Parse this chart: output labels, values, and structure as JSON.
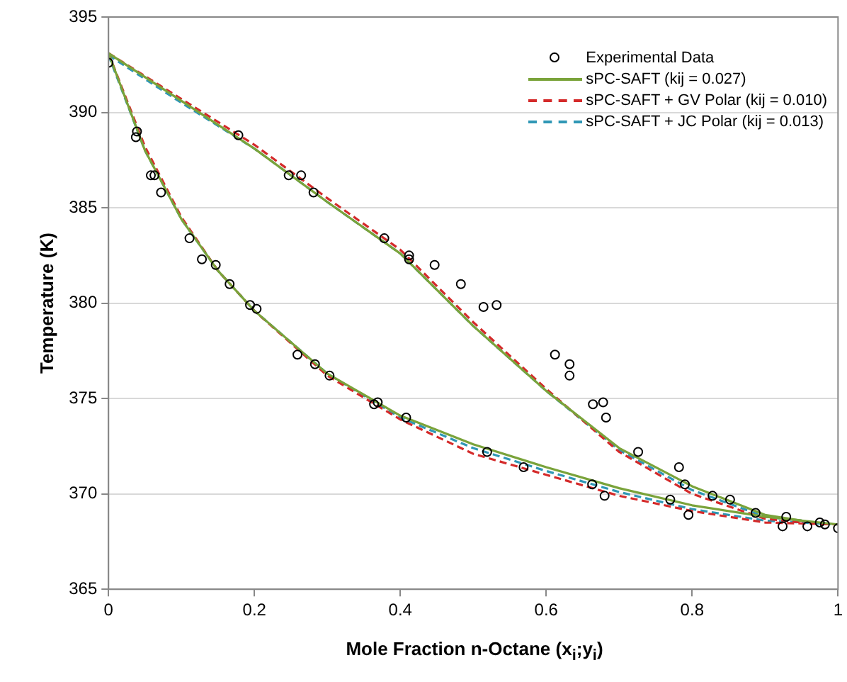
{
  "chart_data": {
    "type": "line",
    "xlabel": "Mole Fraction n-Octane (x$_{i}$;y$_{i}$)",
    "ylabel": "Temperature (K)",
    "xlim": [
      0,
      1
    ],
    "xticks": [
      0,
      0.2,
      0.4,
      0.6,
      0.8,
      1
    ],
    "ylim": [
      365,
      395
    ],
    "yticks": [
      365,
      370,
      375,
      380,
      385,
      390,
      395
    ],
    "grid": "y",
    "legend": "top right",
    "series": [
      {
        "name": "Experimental Data",
        "type": "scatter",
        "marker": "circle",
        "color": "#000000",
        "x": [
          0,
          0.0375,
          0.039,
          0.058,
          0.063,
          0.072,
          0.111,
          0.128,
          0.147,
          0.166,
          0.194,
          0.203,
          0.259,
          0.283,
          0.303,
          0.364,
          0.369,
          0.408,
          0.519,
          0.569,
          0.663,
          0.68,
          0.77,
          0.795,
          0.178,
          0.247,
          0.264,
          0.281,
          0.378,
          0.412,
          0.412,
          0.447,
          0.483,
          0.514,
          0.532,
          0.612,
          0.632,
          0.632,
          0.664,
          0.678,
          0.682,
          0.726,
          0.782,
          0.79,
          0.828,
          0.852,
          0.887,
          0.924,
          0.929,
          0.958,
          0.975,
          0.982,
          1
        ],
        "values": [
          392.6,
          388.7,
          389,
          386.7,
          386.7,
          385.8,
          383.4,
          382.3,
          382,
          381,
          379.9,
          379.7,
          377.3,
          376.8,
          376.2,
          374.7,
          374.8,
          374,
          372.2,
          371.4,
          370.5,
          369.9,
          369.7,
          368.9,
          388.8,
          386.7,
          386.7,
          385.8,
          383.4,
          382.5,
          382.3,
          382,
          381,
          379.8,
          379.9,
          377.3,
          376.8,
          376.2,
          374.7,
          374.8,
          374,
          372.2,
          371.4,
          370.5,
          369.9,
          369.7,
          369,
          368.3,
          368.8,
          368.3,
          368.5,
          368.4,
          368.2
        ]
      },
      {
        "name": "sPC-SAFT (kij = 0.027)",
        "line_style": "solid",
        "marker": "none",
        "color": "#7aa33a",
        "x": [
          0,
          0.05,
          0.1,
          0.15,
          0.2,
          0.3,
          0.4,
          0.5,
          0.6,
          0.7,
          0.8,
          0.9,
          1
        ],
        "values": [
          393.1,
          388,
          384.4,
          381.7,
          379.6,
          376.3,
          374.1,
          372.6,
          371.4,
          370.3,
          369.4,
          368.8,
          368.4
        ]
      },
      {
        "line_style": "solid",
        "marker": "none",
        "color": "#7aa33a",
        "x": [
          0,
          0.1,
          0.2,
          0.3,
          0.4,
          0.5,
          0.6,
          0.7,
          0.8,
          0.9,
          0.95
        ],
        "values": [
          393.1,
          390.6,
          388.1,
          385.3,
          382.6,
          378.8,
          375.4,
          372.4,
          370.4,
          368.9,
          368.6
        ]
      },
      {
        "name": "sPC-SAFT + GV Polar (kij = 0.010)",
        "line_style": "dashed",
        "marker": "none",
        "color": "#d42a2a",
        "x": [
          0,
          0.05,
          0.1,
          0.15,
          0.2,
          0.3,
          0.4,
          0.5,
          0.6,
          0.7,
          0.8,
          0.9,
          1
        ],
        "values": [
          393.1,
          388.2,
          384.5,
          381.7,
          379.6,
          376.2,
          373.9,
          372.1,
          371,
          369.9,
          369.1,
          368.5,
          368.4
        ]
      },
      {
        "line_style": "dashed",
        "marker": "none",
        "color": "#d42a2a",
        "x": [
          0,
          0.1,
          0.2,
          0.3,
          0.4,
          0.5,
          0.6,
          0.7,
          0.8,
          0.9,
          0.95
        ],
        "values": [
          393.1,
          390.7,
          388.3,
          385.5,
          382.8,
          379,
          375.5,
          372.2,
          370,
          368.7,
          368.5
        ]
      },
      {
        "name": "sPC-SAFT + JC Polar (kij = 0.013)",
        "line_style": "dashed",
        "marker": "none",
        "color": "#2f97b5",
        "x": [
          0,
          0.05,
          0.1,
          0.15,
          0.2,
          0.3,
          0.4,
          0.5,
          0.6,
          0.7,
          0.8,
          0.9,
          1
        ],
        "values": [
          393,
          388,
          384.4,
          381.7,
          379.6,
          376.3,
          374,
          372.4,
          371.2,
          370.1,
          369.2,
          368.6,
          368.4
        ]
      },
      {
        "line_style": "dashed",
        "marker": "none",
        "color": "#2f97b5",
        "x": [
          0,
          0.1,
          0.2,
          0.3,
          0.4,
          0.5,
          0.6,
          0.7,
          0.8,
          0.9,
          0.95
        ],
        "values": [
          393,
          390.5,
          388.1,
          385.3,
          382.6,
          378.8,
          375.4,
          372.3,
          370.2,
          368.8,
          368.6
        ]
      }
    ]
  }
}
